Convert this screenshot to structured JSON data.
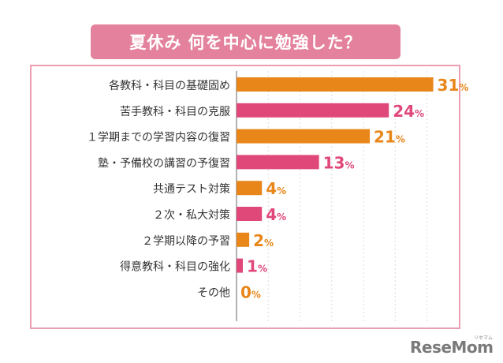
{
  "title": "夏休み 何を中心に勉強した？",
  "logo": {
    "text": "ReseMom",
    "sub": "リセマム"
  },
  "chart_data": {
    "type": "bar",
    "orientation": "horizontal",
    "title": "夏休み 何を中心に勉強した？",
    "categories": [
      "各教科・科目の基礎固め",
      "苦手教科・科目の克服",
      "１学期までの学習内容の復習",
      "塾・予備校の講習の予復習",
      "共通テスト対策",
      "２次・私大対策",
      "２学期以降の予習",
      "得意教科・科目の強化",
      "その他"
    ],
    "values": [
      31,
      24,
      21,
      13,
      4,
      4,
      2,
      1,
      0
    ],
    "value_labels": [
      "31",
      "24",
      "21",
      "13",
      "4",
      "4",
      "2",
      "1",
      "0"
    ],
    "unit": "%",
    "bar_colors": [
      "#e8861a",
      "#e0487a",
      "#e8861a",
      "#e0487a",
      "#e8861a",
      "#e0487a",
      "#e8861a",
      "#e0487a",
      "#e8861a"
    ],
    "xlim": [
      0,
      35
    ],
    "grid": true
  },
  "colors": {
    "orange": "#e8861a",
    "pink": "#e0487a",
    "title_bg": "#e4819c",
    "frame": "#ec9fb3"
  }
}
